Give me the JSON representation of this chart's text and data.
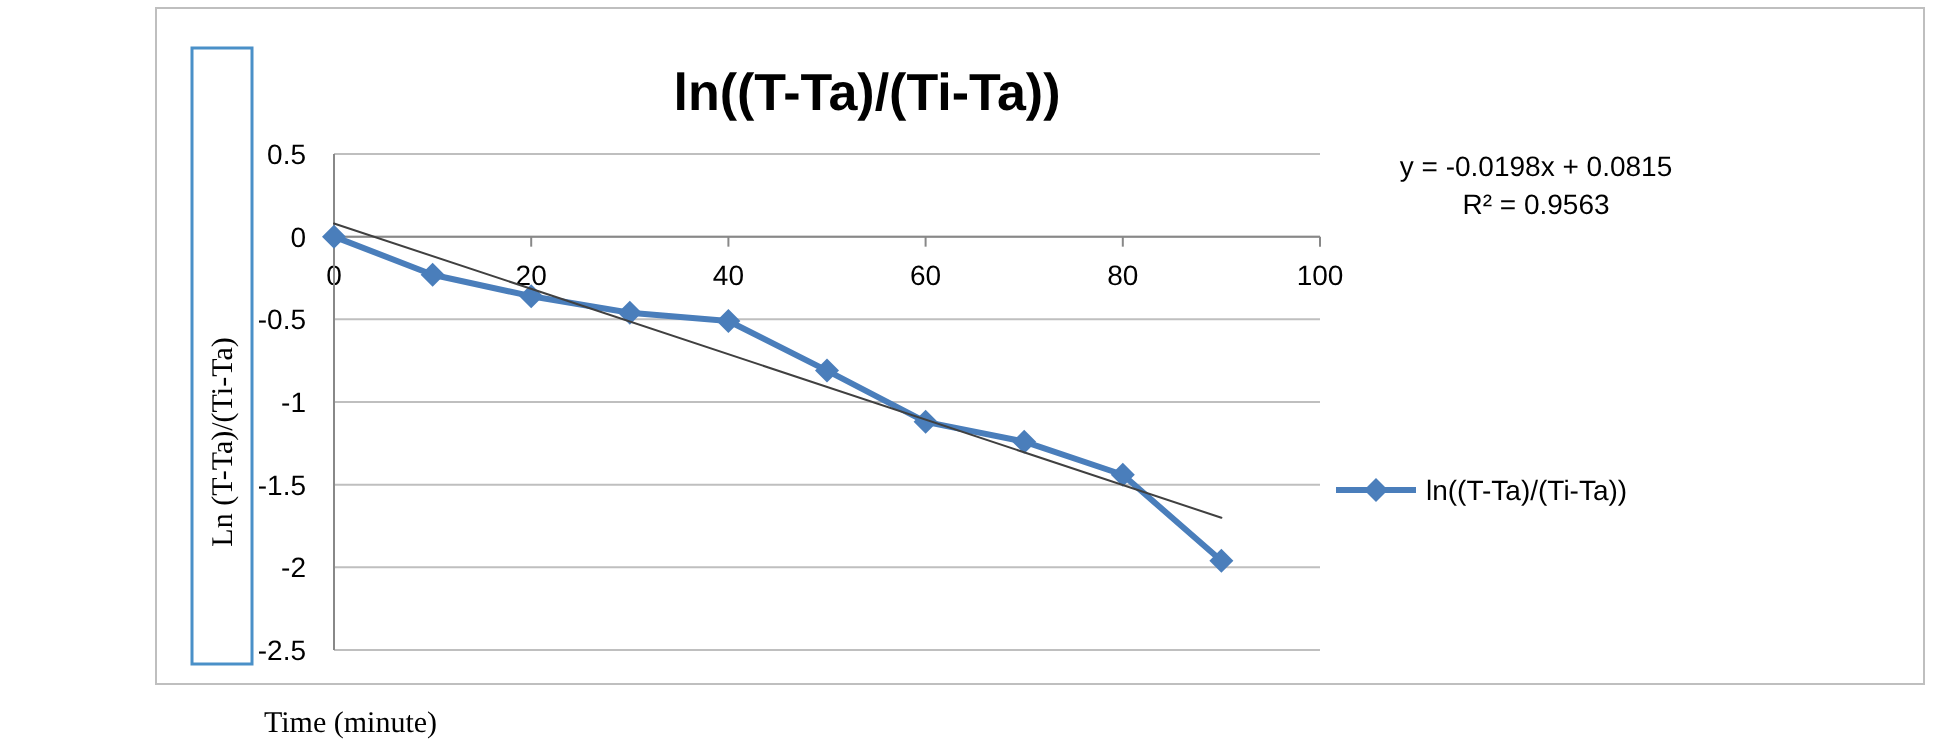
{
  "chart_data": {
    "type": "line",
    "title": "ln((T-Ta)/(Ti-Ta))",
    "xlabel": "Time (minute)",
    "ylabel": "Ln (T-Ta)/(Ti-Ta)",
    "x": [
      0,
      10,
      20,
      30,
      40,
      50,
      60,
      70,
      80,
      90
    ],
    "series": [
      {
        "name": "ln((T-Ta)/(Ti-Ta))",
        "color": "#4a7ebb",
        "marker": "diamond",
        "values": [
          0,
          -0.23,
          -0.36,
          -0.46,
          -0.51,
          -0.81,
          -1.12,
          -1.24,
          -1.44,
          -1.96
        ]
      },
      {
        "type": "line",
        "color": "#404040",
        "marker": "none",
        "x": [
          0,
          90
        ],
        "values": [
          0.08,
          -1.7
        ]
      }
    ],
    "xlim": [
      0,
      100
    ],
    "xticks": [
      0,
      20,
      40,
      60,
      80,
      100
    ],
    "ylim": [
      -2.5,
      0.5
    ],
    "yticks": [
      -2.5,
      -2,
      -1.5,
      -1,
      -0.5,
      0,
      0.5
    ],
    "grid": "y",
    "legend": "right",
    "annotations": [
      "y = -0.0198x + 0.0815",
      "R² = 0.9563"
    ]
  }
}
